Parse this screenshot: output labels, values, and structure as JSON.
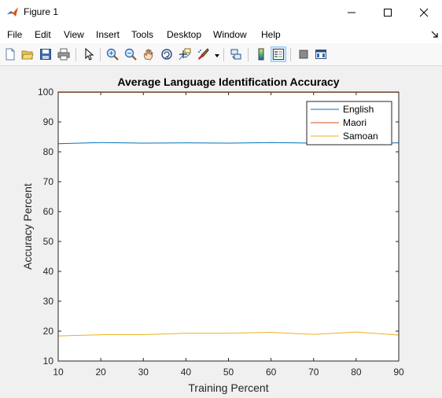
{
  "window": {
    "title": "Figure 1"
  },
  "menu": [
    "File",
    "Edit",
    "View",
    "Insert",
    "Tools",
    "Desktop",
    "Window",
    "Help"
  ],
  "toolbar_icons": [
    "new-figure-icon",
    "open-file-icon",
    "save-icon",
    "print-icon",
    "pointer-icon",
    "zoom-in-icon",
    "zoom-out-icon",
    "pan-icon",
    "rotate-3d-icon",
    "data-cursor-icon",
    "brush-icon",
    "link-plot-icon",
    "colorbar-icon",
    "legend-icon",
    "hide-plot-tools-icon",
    "show-plot-tools-icon"
  ],
  "colors": {
    "English": "#0072bd",
    "Maori": "#d95319",
    "Samoan": "#edb120"
  },
  "chart_data": {
    "type": "line",
    "title": "Average Language Identification Accuracy",
    "xlabel": "Training Percent",
    "ylabel": "Accuracy Percent",
    "xlim": [
      10,
      90
    ],
    "ylim": [
      10,
      100
    ],
    "xticks": [
      10,
      20,
      30,
      40,
      50,
      60,
      70,
      80,
      90
    ],
    "yticks": [
      10,
      20,
      30,
      40,
      50,
      60,
      70,
      80,
      90,
      100
    ],
    "grid": false,
    "legend_position": "top-right",
    "x": [
      10,
      20,
      30,
      40,
      50,
      60,
      70,
      80,
      90
    ],
    "series": [
      {
        "name": "English",
        "values": [
          82.7,
          83.1,
          82.9,
          83.0,
          82.9,
          83.1,
          82.9,
          82.8,
          83.0
        ]
      },
      {
        "name": "Maori",
        "values": [
          99.9,
          99.9,
          99.9,
          99.9,
          99.9,
          99.9,
          99.9,
          99.9,
          99.9
        ]
      },
      {
        "name": "Samoan",
        "values": [
          18.4,
          18.8,
          18.8,
          19.3,
          19.3,
          19.6,
          18.9,
          19.7,
          18.7
        ]
      }
    ]
  }
}
